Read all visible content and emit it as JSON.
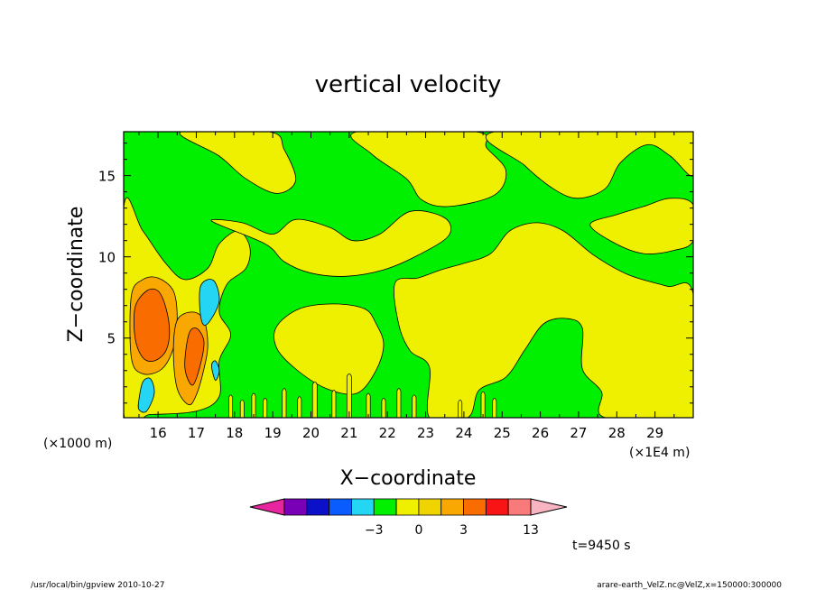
{
  "chart_data": {
    "type": "heatmap",
    "title": "vertical velocity",
    "xlabel": "X−coordinate",
    "ylabel": "Z−coordinate",
    "x_unit_label": "(×1E4 m)",
    "y_unit_label": "(×1000 m)",
    "xlim": [
      15.1,
      30.0
    ],
    "ylim": [
      0.1,
      17.7
    ],
    "x_ticks": [
      16,
      17,
      18,
      19,
      20,
      21,
      22,
      23,
      24,
      25,
      26,
      27,
      28,
      29
    ],
    "y_ticks": [
      5,
      10,
      15
    ],
    "grid": false,
    "background_color": "#00f000",
    "colorbar": {
      "colors": [
        "#e8259e",
        "#7a00b8",
        "#0c10c8",
        "#0a5cff",
        "#24d6f4",
        "#00f000",
        "#eef000",
        "#f0d400",
        "#f8a800",
        "#f86c00",
        "#f81414",
        "#f87a7a",
        "#f8b4c0"
      ],
      "tick_labels": [
        "−3",
        "0",
        "3",
        "13"
      ],
      "tick_bounds": [
        4,
        6,
        8,
        11
      ]
    },
    "regions": [
      {
        "level": "positive-small",
        "color": "#eef000",
        "polygon": [
          [
            15.1,
            13.0
          ],
          [
            15.6,
            11.6
          ],
          [
            16.2,
            9.6
          ],
          [
            16.7,
            8.6
          ],
          [
            17.3,
            9.3
          ],
          [
            17.6,
            10.8
          ],
          [
            18.1,
            11.6
          ],
          [
            18.4,
            10.6
          ],
          [
            18.3,
            9.3
          ],
          [
            17.8,
            8.3
          ],
          [
            17.6,
            6.6
          ],
          [
            17.9,
            5.2
          ],
          [
            17.6,
            3.6
          ],
          [
            17.6,
            1.4
          ],
          [
            17.0,
            0.5
          ],
          [
            15.8,
            0.3
          ],
          [
            15.1,
            0.4
          ]
        ]
      },
      {
        "level": "positive-small",
        "color": "#eef000",
        "polygon": [
          [
            16.6,
            17.7
          ],
          [
            17.6,
            16.2
          ],
          [
            18.3,
            14.8
          ],
          [
            19.1,
            13.9
          ],
          [
            19.6,
            14.7
          ],
          [
            19.3,
            16.6
          ],
          [
            18.9,
            17.7
          ]
        ]
      },
      {
        "level": "positive-small",
        "color": "#eef000",
        "polygon": [
          [
            17.4,
            12.2
          ],
          [
            18.8,
            10.8
          ],
          [
            19.3,
            9.7
          ],
          [
            20.0,
            9.0
          ],
          [
            20.9,
            8.8
          ],
          [
            21.9,
            9.2
          ],
          [
            22.8,
            10.1
          ],
          [
            23.6,
            11.3
          ],
          [
            23.5,
            12.4
          ],
          [
            22.6,
            12.8
          ],
          [
            21.8,
            11.4
          ],
          [
            21.1,
            11.0
          ],
          [
            20.5,
            11.8
          ],
          [
            19.6,
            12.3
          ],
          [
            19.0,
            11.4
          ],
          [
            18.2,
            12.1
          ]
        ]
      },
      {
        "level": "positive-small",
        "color": "#eef000",
        "polygon": [
          [
            21.2,
            17.7
          ],
          [
            21.6,
            16.3
          ],
          [
            22.5,
            14.8
          ],
          [
            22.9,
            13.5
          ],
          [
            23.6,
            13.1
          ],
          [
            24.8,
            13.8
          ],
          [
            25.1,
            15.3
          ],
          [
            24.6,
            16.7
          ],
          [
            24.3,
            17.7
          ]
        ]
      },
      {
        "level": "positive-small",
        "color": "#eef000",
        "polygon": [
          [
            19.1,
            5.7
          ],
          [
            19.7,
            6.8
          ],
          [
            20.6,
            7.1
          ],
          [
            21.4,
            6.8
          ],
          [
            21.7,
            5.9
          ],
          [
            21.9,
            4.6
          ],
          [
            21.7,
            3.0
          ],
          [
            21.2,
            1.6
          ],
          [
            20.4,
            1.9
          ],
          [
            19.6,
            3.1
          ],
          [
            19.1,
            4.4
          ]
        ]
      },
      {
        "level": "positive-small",
        "color": "#eef000",
        "polygon": [
          [
            22.2,
            8.4
          ],
          [
            22.3,
            5.8
          ],
          [
            22.6,
            4.2
          ],
          [
            23.1,
            3.2
          ],
          [
            23.1,
            0.1
          ],
          [
            24.1,
            0.1
          ],
          [
            24.4,
            1.8
          ],
          [
            25.1,
            2.6
          ],
          [
            25.6,
            4.3
          ],
          [
            26.1,
            5.9
          ],
          [
            26.7,
            6.2
          ],
          [
            27.1,
            5.6
          ],
          [
            27.1,
            3.1
          ],
          [
            27.6,
            1.7
          ],
          [
            27.7,
            0.1
          ],
          [
            30.0,
            0.1
          ],
          [
            30.0,
            7.7
          ],
          [
            29.3,
            8.2
          ],
          [
            28.3,
            8.9
          ],
          [
            27.4,
            10.1
          ],
          [
            26.6,
            11.6
          ],
          [
            25.9,
            12.1
          ],
          [
            25.2,
            11.6
          ],
          [
            24.7,
            10.2
          ],
          [
            24.0,
            9.6
          ],
          [
            23.4,
            9.2
          ],
          [
            22.8,
            8.7
          ]
        ]
      },
      {
        "level": "positive-small",
        "color": "#eef000",
        "polygon": [
          [
            24.8,
            17.7
          ],
          [
            25.6,
            15.6
          ],
          [
            26.4,
            14.1
          ],
          [
            27.0,
            13.6
          ],
          [
            27.7,
            14.2
          ],
          [
            28.1,
            15.8
          ],
          [
            28.8,
            16.9
          ],
          [
            29.4,
            16.2
          ],
          [
            30.0,
            15.0
          ],
          [
            30.0,
            17.7
          ]
        ]
      },
      {
        "level": "positive-small",
        "color": "#eef000",
        "polygon": [
          [
            27.3,
            12.0
          ],
          [
            27.9,
            10.9
          ],
          [
            28.7,
            10.2
          ],
          [
            29.5,
            10.4
          ],
          [
            30.0,
            11.0
          ],
          [
            30.0,
            13.2
          ],
          [
            29.4,
            13.6
          ],
          [
            28.7,
            13.1
          ],
          [
            28.0,
            12.6
          ]
        ]
      },
      {
        "level": "positive-moderate",
        "color": "#f8a800",
        "polygon": [
          [
            15.3,
            7.6
          ],
          [
            15.6,
            8.6
          ],
          [
            16.0,
            8.7
          ],
          [
            16.4,
            7.9
          ],
          [
            16.5,
            6.2
          ],
          [
            16.4,
            4.4
          ],
          [
            16.1,
            3.1
          ],
          [
            15.6,
            2.8
          ],
          [
            15.3,
            3.8
          ]
        ]
      },
      {
        "level": "positive-moderate",
        "color": "#f8a800",
        "polygon": [
          [
            16.5,
            6.1
          ],
          [
            16.9,
            6.6
          ],
          [
            17.2,
            6.1
          ],
          [
            17.3,
            4.6
          ],
          [
            17.2,
            3.1
          ],
          [
            17.0,
            1.5
          ],
          [
            16.8,
            0.9
          ],
          [
            16.5,
            1.9
          ],
          [
            16.4,
            4.1
          ]
        ]
      },
      {
        "level": "positive-large",
        "color": "#f86c00",
        "polygon": [
          [
            15.4,
            6.9
          ],
          [
            15.7,
            7.9
          ],
          [
            16.0,
            7.9
          ],
          [
            16.2,
            6.9
          ],
          [
            16.3,
            5.4
          ],
          [
            16.2,
            4.2
          ],
          [
            15.9,
            3.6
          ],
          [
            15.6,
            3.8
          ],
          [
            15.4,
            5.0
          ]
        ]
      },
      {
        "level": "positive-large",
        "color": "#f86c00",
        "polygon": [
          [
            16.8,
            5.2
          ],
          [
            17.0,
            5.6
          ],
          [
            17.2,
            4.8
          ],
          [
            17.1,
            3.3
          ],
          [
            16.9,
            2.1
          ],
          [
            16.7,
            3.2
          ]
        ]
      },
      {
        "level": "negative-small",
        "color": "#24d6f4",
        "polygon": [
          [
            17.1,
            8.1
          ],
          [
            17.3,
            8.6
          ],
          [
            17.5,
            8.4
          ],
          [
            17.6,
            7.3
          ],
          [
            17.4,
            6.2
          ],
          [
            17.2,
            5.8
          ],
          [
            17.1,
            6.6
          ]
        ]
      },
      {
        "level": "negative-small",
        "color": "#24d6f4",
        "polygon": [
          [
            15.5,
            1.2
          ],
          [
            15.6,
            2.3
          ],
          [
            15.8,
            2.5
          ],
          [
            15.9,
            1.6
          ],
          [
            15.7,
            0.5
          ],
          [
            15.5,
            0.6
          ]
        ]
      },
      {
        "level": "negative-small",
        "color": "#24d6f4",
        "polygon": [
          [
            17.4,
            3.3
          ],
          [
            17.5,
            3.6
          ],
          [
            17.6,
            3.0
          ],
          [
            17.5,
            2.4
          ]
        ]
      }
    ],
    "updraft_streaks": [
      {
        "x": 17.9,
        "top": 1.5,
        "half_width": 0.05
      },
      {
        "x": 18.2,
        "top": 1.2,
        "half_width": 0.05
      },
      {
        "x": 18.5,
        "top": 1.6,
        "half_width": 0.05
      },
      {
        "x": 18.8,
        "top": 1.3,
        "half_width": 0.05
      },
      {
        "x": 19.3,
        "top": 1.9,
        "half_width": 0.05
      },
      {
        "x": 19.7,
        "top": 1.4,
        "half_width": 0.05
      },
      {
        "x": 20.1,
        "top": 2.3,
        "half_width": 0.06
      },
      {
        "x": 20.6,
        "top": 1.8,
        "half_width": 0.05
      },
      {
        "x": 21.0,
        "top": 2.8,
        "half_width": 0.06
      },
      {
        "x": 21.5,
        "top": 1.6,
        "half_width": 0.05
      },
      {
        "x": 21.9,
        "top": 1.3,
        "half_width": 0.05
      },
      {
        "x": 22.3,
        "top": 1.9,
        "half_width": 0.05
      },
      {
        "x": 22.7,
        "top": 1.5,
        "half_width": 0.05
      },
      {
        "x": 23.9,
        "top": 1.2,
        "half_width": 0.05
      },
      {
        "x": 24.5,
        "top": 1.7,
        "half_width": 0.05
      },
      {
        "x": 24.8,
        "top": 1.3,
        "half_width": 0.05
      }
    ]
  },
  "annotations": {
    "time": "t=9450 s",
    "footer_left": "/usr/local/bin/gpview   2010-10-27",
    "footer_right": "arare-earth_VelZ.nc@VelZ,x=150000:300000"
  }
}
